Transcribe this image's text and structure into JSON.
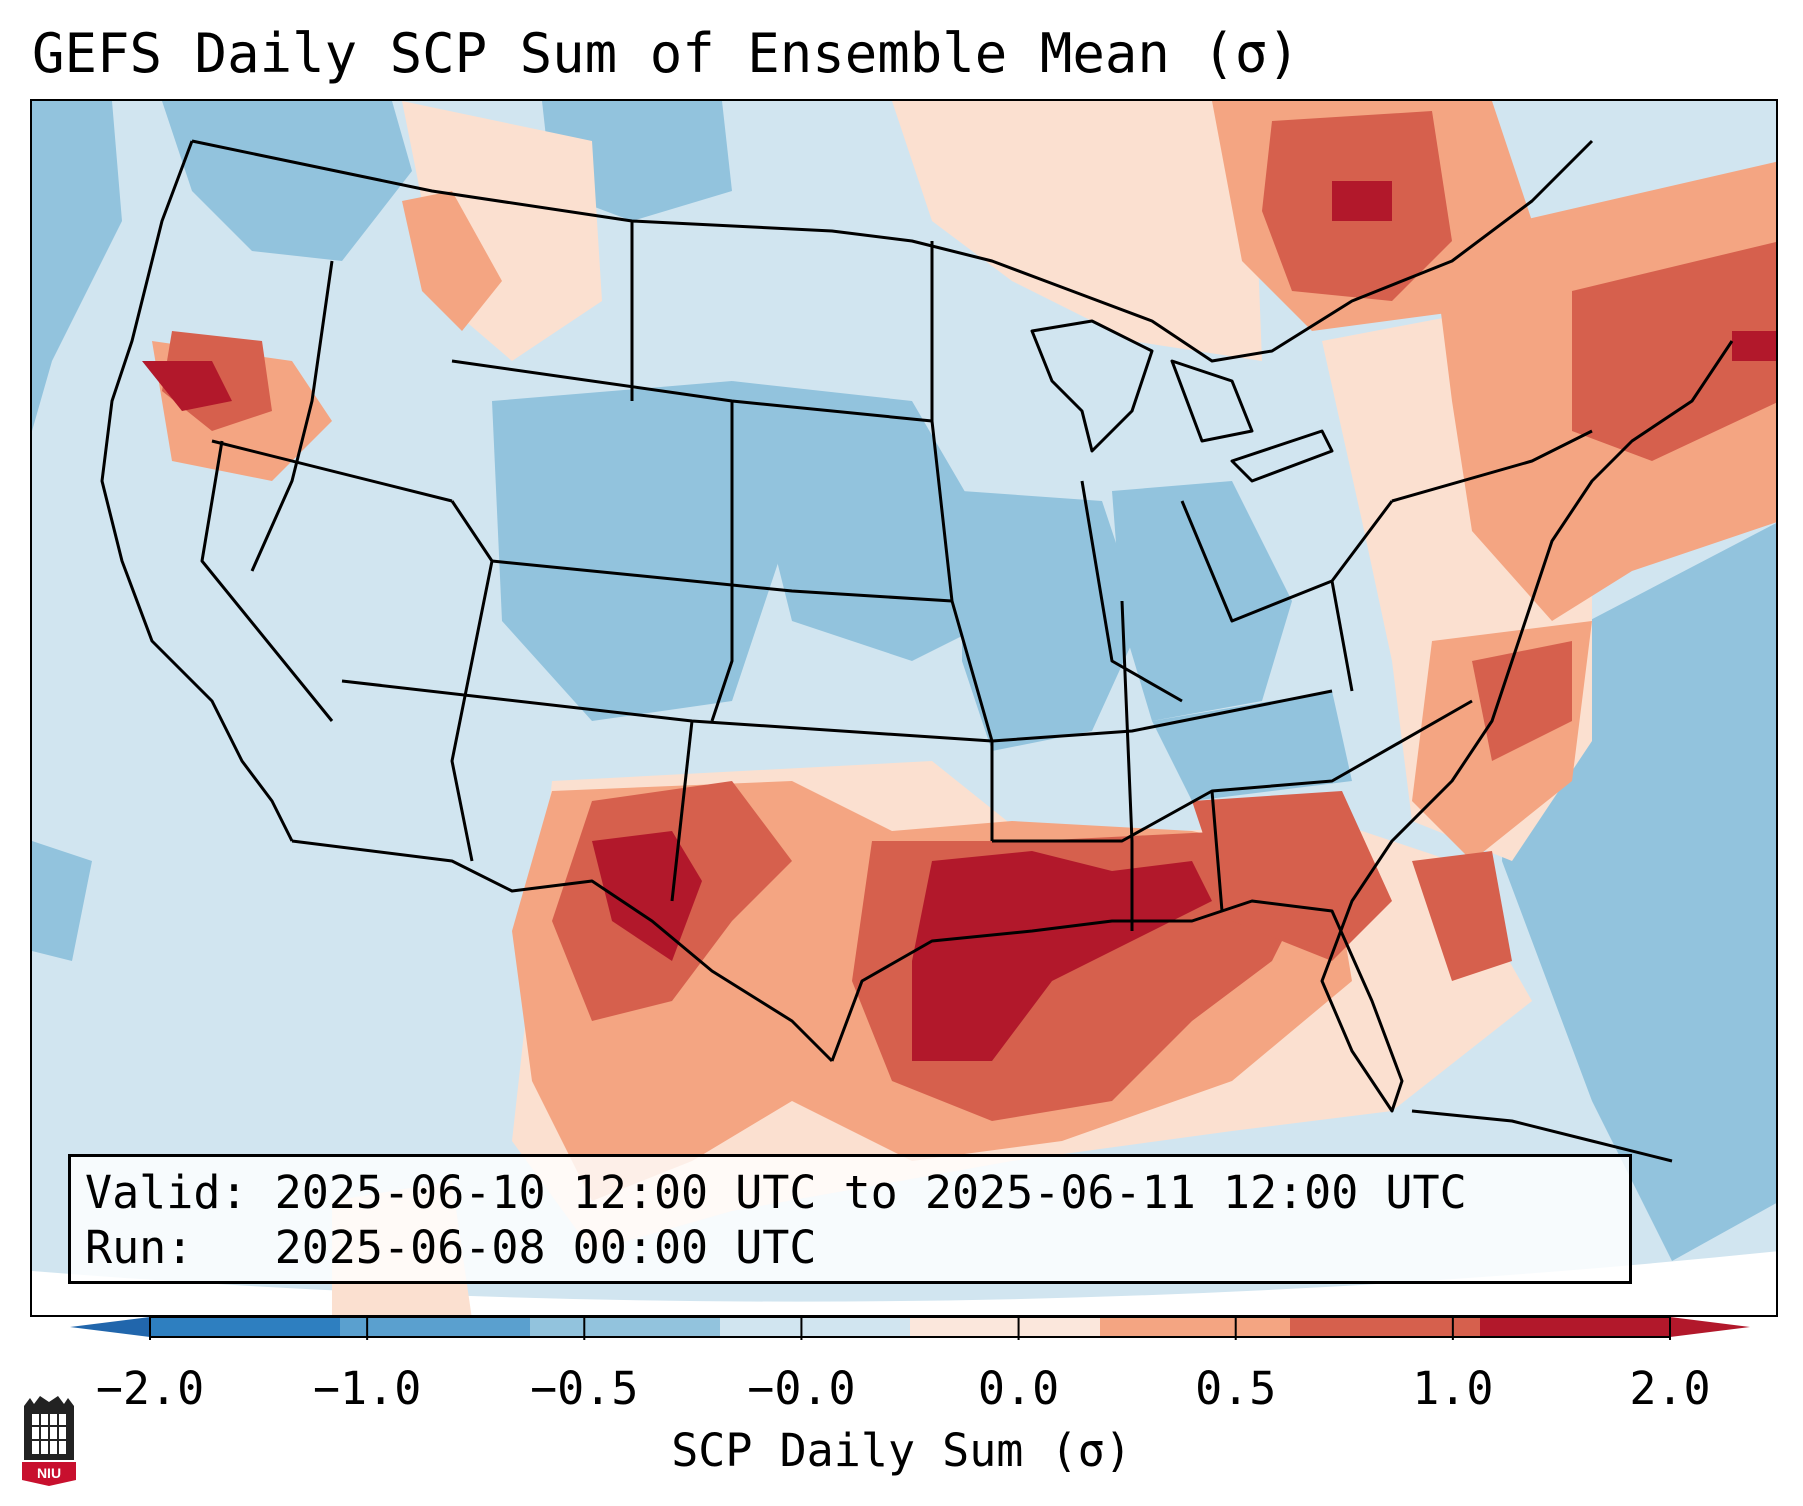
{
  "title": "GEFS Daily SCP Sum of Ensemble Mean (σ)",
  "info": {
    "valid_line": "Valid: 2025-06-10 12:00 UTC to 2025-06-11 12:00 UTC",
    "run_line": "Run:   2025-06-08 00:00 UTC"
  },
  "colorbar": {
    "label": "SCP Daily Sum (σ)",
    "ticks": [
      "−2.0",
      "−1.0",
      "−0.5",
      "−0.0",
      "0.0",
      "0.5",
      "1.0",
      "2.0"
    ],
    "colors": [
      "#2e7fc0",
      "#5aa0cf",
      "#92c3dd",
      "#d1e5f0",
      "#fbe7dc",
      "#f4a582",
      "#d6604d",
      "#b2182b"
    ],
    "under_color": "#2166ac",
    "over_color": "#b2182b"
  },
  "map": {
    "region": "Continental United States",
    "background_color": "#d1e5f0",
    "anomaly_areas": [
      {
        "name": "southern-plains-max",
        "level": 2.0
      },
      {
        "name": "lower-mississippi-max",
        "level": 2.0
      },
      {
        "name": "southeast-band",
        "level": 1.0
      },
      {
        "name": "northeast-max",
        "level": 1.0
      },
      {
        "name": "quebec-max",
        "level": 1.0
      },
      {
        "name": "oregon-max",
        "level": 2.0
      },
      {
        "name": "central-plains-min",
        "level": -0.5
      },
      {
        "name": "ohio-valley-min",
        "level": -0.5
      }
    ]
  },
  "logo": {
    "text": "NIU"
  }
}
